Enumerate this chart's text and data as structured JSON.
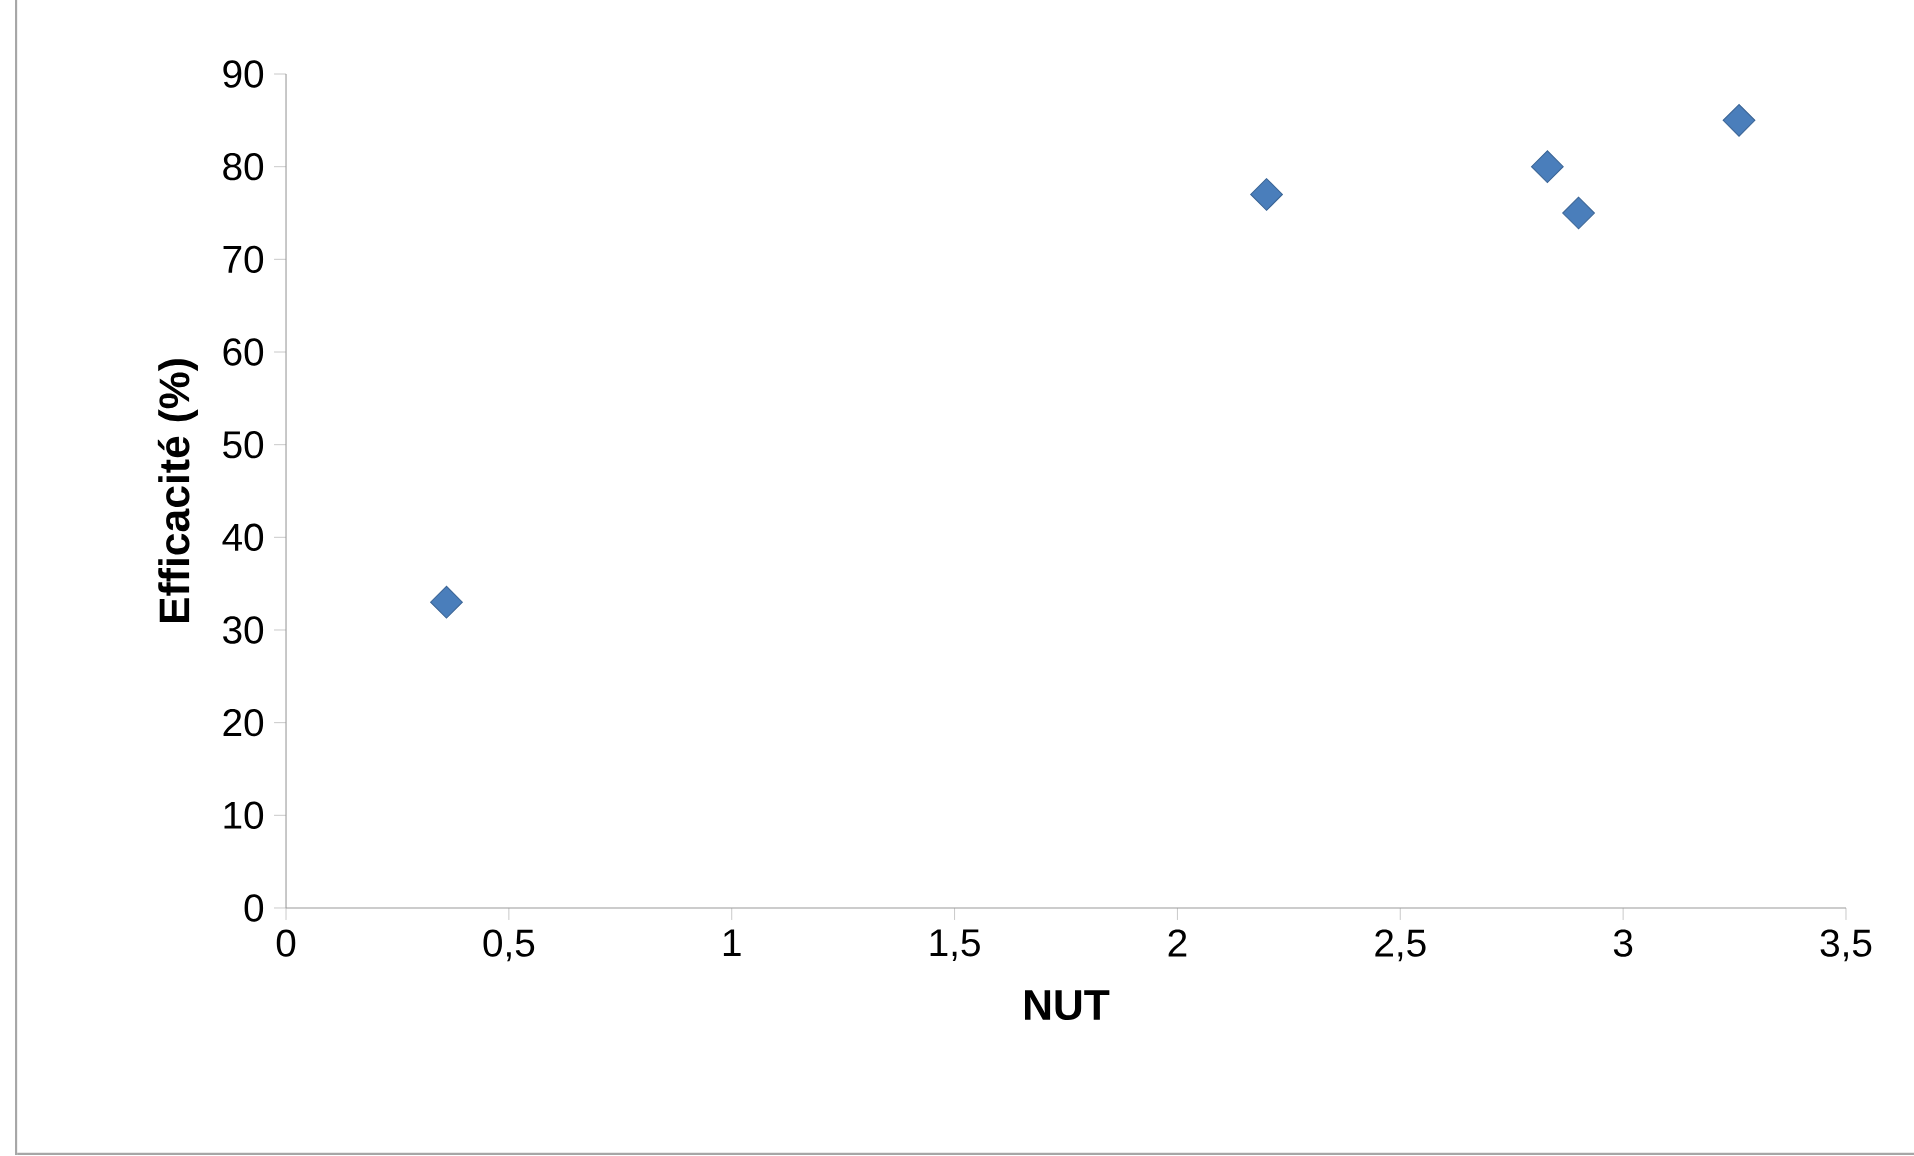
{
  "chart_data": {
    "type": "scatter",
    "xlabel": "NUT",
    "ylabel": "Efficacité (%)",
    "x": [
      0.36,
      2.2,
      2.83,
      2.9,
      3.26
    ],
    "series": [
      {
        "color": "#4a7ebb",
        "values": [
          33,
          77,
          80,
          75,
          85
        ]
      }
    ],
    "xlim": [
      0,
      3.5
    ],
    "ylim": [
      0,
      90
    ],
    "xticks": [
      0,
      {
        "value": 0.5,
        "label": "0,5"
      },
      1,
      {
        "value": 1.5,
        "label": "1,5"
      },
      2,
      {
        "value": 2.5,
        "label": "2,5"
      },
      3,
      {
        "value": 3.5,
        "label": "3,5"
      }
    ],
    "yticks": [
      0,
      10,
      20,
      30,
      40,
      50,
      60,
      70,
      80,
      90
    ],
    "marker": "diamond"
  }
}
